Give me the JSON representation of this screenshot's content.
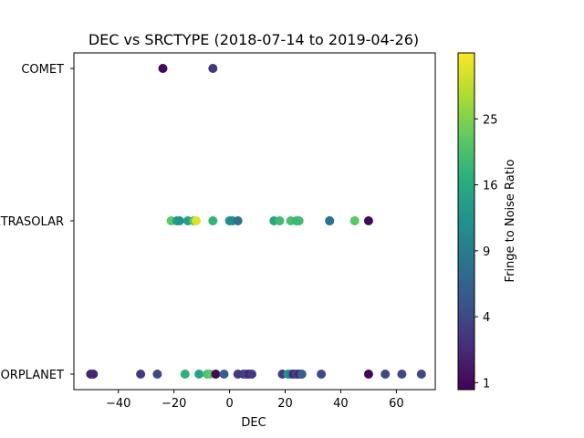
{
  "chart_data": {
    "type": "scatter",
    "title": "DEC vs SRCTYPE (2018-07-14 to 2019-04-26)",
    "xlabel": "DEC",
    "ylabel": "",
    "xlim": [
      -56,
      74
    ],
    "x_ticks": [
      -40,
      -20,
      0,
      20,
      40,
      60
    ],
    "y_categories": [
      "MAJORPLANET",
      "EXTRASOLAR",
      "COMET"
    ],
    "colorbar": {
      "label": "Fringe to Noise Ratio",
      "colormap": "viridis",
      "scale": "sqrt",
      "range": [
        0.8,
        36
      ],
      "ticks": [
        1,
        4,
        9,
        16,
        25
      ]
    },
    "points": [
      {
        "x": -24,
        "y": "COMET",
        "c": 1
      },
      {
        "x": -6,
        "y": "COMET",
        "c": 3
      },
      {
        "x": -21,
        "y": "EXTRASOLAR",
        "c": 22
      },
      {
        "x": -19,
        "y": "EXTRASOLAR",
        "c": 14
      },
      {
        "x": -18,
        "y": "EXTRASOLAR",
        "c": 12
      },
      {
        "x": -15,
        "y": "EXTRASOLAR",
        "c": 14
      },
      {
        "x": -13,
        "y": "EXTRASOLAR",
        "c": 21
      },
      {
        "x": -12,
        "y": "EXTRASOLAR",
        "c": 33
      },
      {
        "x": -6,
        "y": "EXTRASOLAR",
        "c": 18
      },
      {
        "x": 0,
        "y": "EXTRASOLAR",
        "c": 12
      },
      {
        "x": 1,
        "y": "EXTRASOLAR",
        "c": 11
      },
      {
        "x": 3,
        "y": "EXTRASOLAR",
        "c": 8
      },
      {
        "x": 16,
        "y": "EXTRASOLAR",
        "c": 15
      },
      {
        "x": 18,
        "y": "EXTRASOLAR",
        "c": 19
      },
      {
        "x": 22,
        "y": "EXTRASOLAR",
        "c": 20
      },
      {
        "x": 24,
        "y": "EXTRASOLAR",
        "c": 18
      },
      {
        "x": 25,
        "y": "EXTRASOLAR",
        "c": 19
      },
      {
        "x": 36,
        "y": "EXTRASOLAR",
        "c": 9
      },
      {
        "x": 36,
        "y": "EXTRASOLAR",
        "c": 8
      },
      {
        "x": 45,
        "y": "EXTRASOLAR",
        "c": 22
      },
      {
        "x": 50,
        "y": "EXTRASOLAR",
        "c": 1
      },
      {
        "x": -50,
        "y": "MAJORPLANET",
        "c": 2
      },
      {
        "x": -49,
        "y": "MAJORPLANET",
        "c": 2
      },
      {
        "x": -32,
        "y": "MAJORPLANET",
        "c": 3
      },
      {
        "x": -26,
        "y": "MAJORPLANET",
        "c": 4
      },
      {
        "x": -16,
        "y": "MAJORPLANET",
        "c": 17
      },
      {
        "x": -11,
        "y": "MAJORPLANET",
        "c": 15
      },
      {
        "x": -8,
        "y": "MAJORPLANET",
        "c": 20
      },
      {
        "x": -7,
        "y": "MAJORPLANET",
        "c": 22
      },
      {
        "x": -5,
        "y": "MAJORPLANET",
        "c": 1
      },
      {
        "x": -2,
        "y": "MAJORPLANET",
        "c": 6
      },
      {
        "x": 3,
        "y": "MAJORPLANET",
        "c": 3
      },
      {
        "x": 5,
        "y": "MAJORPLANET",
        "c": 3
      },
      {
        "x": 6,
        "y": "MAJORPLANET",
        "c": 4
      },
      {
        "x": 7,
        "y": "MAJORPLANET",
        "c": 2
      },
      {
        "x": 8,
        "y": "MAJORPLANET",
        "c": 3
      },
      {
        "x": 19,
        "y": "MAJORPLANET",
        "c": 3
      },
      {
        "x": 21,
        "y": "MAJORPLANET",
        "c": 13
      },
      {
        "x": 22,
        "y": "MAJORPLANET",
        "c": 10
      },
      {
        "x": 23,
        "y": "MAJORPLANET",
        "c": 2
      },
      {
        "x": 24,
        "y": "MAJORPLANET",
        "c": 4
      },
      {
        "x": 25,
        "y": "MAJORPLANET",
        "c": 2
      },
      {
        "x": 26,
        "y": "MAJORPLANET",
        "c": 6
      },
      {
        "x": 33,
        "y": "MAJORPLANET",
        "c": 4
      },
      {
        "x": 50,
        "y": "MAJORPLANET",
        "c": 1
      },
      {
        "x": 56,
        "y": "MAJORPLANET",
        "c": 4
      },
      {
        "x": 62,
        "y": "MAJORPLANET",
        "c": 4
      },
      {
        "x": 69,
        "y": "MAJORPLANET",
        "c": 4
      }
    ]
  }
}
